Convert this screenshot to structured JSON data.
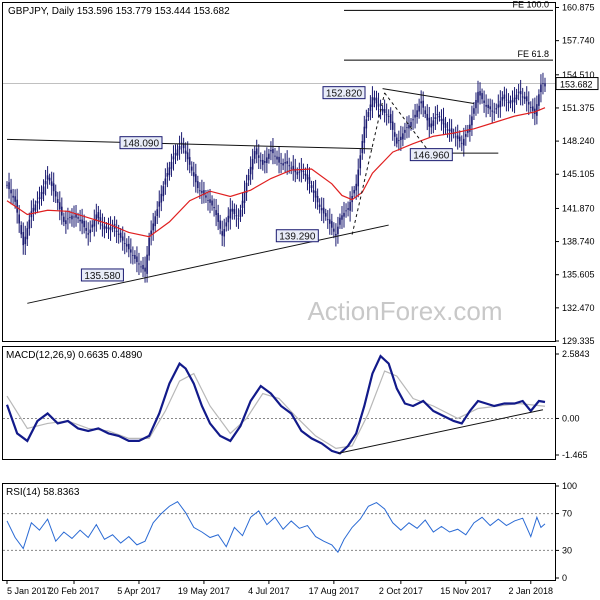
{
  "chart_data": [
    {
      "type": "candlestick",
      "panel": "price",
      "header": "GBPJPY, Daily  153.596 153.779 153.444 153.682",
      "symbol": "GBPJPY",
      "timeframe": "Daily",
      "ohlc": {
        "open": 153.596,
        "high": 153.779,
        "low": 153.444,
        "close": 153.682
      },
      "ylim": [
        129.335,
        161.3
      ],
      "y_ticks": [
        "160.875",
        "157.740",
        "154.510",
        "151.375",
        "148.240",
        "145.105",
        "141.870",
        "138.740",
        "135.605",
        "132.470",
        "129.335"
      ],
      "last_price_label": "153.682",
      "watermark": "ActionForex.com",
      "grid": false,
      "close_series": [
        {
          "i": 0,
          "v": 144.1
        },
        {
          "i": 4,
          "v": 142.5
        },
        {
          "i": 8,
          "v": 138.4
        },
        {
          "i": 12,
          "v": 141.6
        },
        {
          "i": 16,
          "v": 142.9
        },
        {
          "i": 20,
          "v": 145.0
        },
        {
          "i": 24,
          "v": 143.0
        },
        {
          "i": 28,
          "v": 140.6
        },
        {
          "i": 32,
          "v": 141.2
        },
        {
          "i": 36,
          "v": 140.8
        },
        {
          "i": 40,
          "v": 139.4
        },
        {
          "i": 44,
          "v": 141.3
        },
        {
          "i": 48,
          "v": 139.9
        },
        {
          "i": 52,
          "v": 140.2
        },
        {
          "i": 56,
          "v": 139.1
        },
        {
          "i": 60,
          "v": 138.0
        },
        {
          "i": 64,
          "v": 136.8
        },
        {
          "i": 68,
          "v": 135.9
        },
        {
          "i": 70,
          "v": 139.1
        },
        {
          "i": 74,
          "v": 141.8
        },
        {
          "i": 78,
          "v": 144.7
        },
        {
          "i": 82,
          "v": 146.8
        },
        {
          "i": 86,
          "v": 148.1
        },
        {
          "i": 90,
          "v": 146.0
        },
        {
          "i": 94,
          "v": 143.8
        },
        {
          "i": 98,
          "v": 142.9
        },
        {
          "i": 102,
          "v": 141.9
        },
        {
          "i": 106,
          "v": 139.3
        },
        {
          "i": 110,
          "v": 141.8
        },
        {
          "i": 114,
          "v": 140.9
        },
        {
          "i": 118,
          "v": 144.3
        },
        {
          "i": 122,
          "v": 147.3
        },
        {
          "i": 126,
          "v": 146.0
        },
        {
          "i": 130,
          "v": 147.4
        },
        {
          "i": 134,
          "v": 146.2
        },
        {
          "i": 138,
          "v": 146.1
        },
        {
          "i": 142,
          "v": 145.3
        },
        {
          "i": 146,
          "v": 145.4
        },
        {
          "i": 150,
          "v": 143.8
        },
        {
          "i": 154,
          "v": 142.0
        },
        {
          "i": 158,
          "v": 140.8
        },
        {
          "i": 162,
          "v": 139.3
        },
        {
          "i": 164,
          "v": 141.0
        },
        {
          "i": 168,
          "v": 141.9
        },
        {
          "i": 172,
          "v": 144.2
        },
        {
          "i": 176,
          "v": 149.6
        },
        {
          "i": 180,
          "v": 152.4
        },
        {
          "i": 184,
          "v": 151.2
        },
        {
          "i": 188,
          "v": 150.6
        },
        {
          "i": 192,
          "v": 148.0
        },
        {
          "i": 196,
          "v": 149.3
        },
        {
          "i": 200,
          "v": 150.3
        },
        {
          "i": 204,
          "v": 152.0
        },
        {
          "i": 208,
          "v": 149.6
        },
        {
          "i": 212,
          "v": 150.8
        },
        {
          "i": 216,
          "v": 149.5
        },
        {
          "i": 220,
          "v": 148.9
        },
        {
          "i": 224,
          "v": 148.0
        },
        {
          "i": 228,
          "v": 149.8
        },
        {
          "i": 232,
          "v": 152.9
        },
        {
          "i": 236,
          "v": 151.5
        },
        {
          "i": 240,
          "v": 151.0
        },
        {
          "i": 244,
          "v": 152.4
        },
        {
          "i": 248,
          "v": 151.8
        },
        {
          "i": 252,
          "v": 152.9
        },
        {
          "i": 256,
          "v": 152.0
        },
        {
          "i": 260,
          "v": 150.8
        },
        {
          "i": 263,
          "v": 153.6
        },
        {
          "i": 265,
          "v": 153.7
        }
      ],
      "ma_series": [
        {
          "i": 0,
          "v": 142.6
        },
        {
          "i": 10,
          "v": 141.3
        },
        {
          "i": 20,
          "v": 141.7
        },
        {
          "i": 30,
          "v": 141.6
        },
        {
          "i": 40,
          "v": 141.0
        },
        {
          "i": 50,
          "v": 140.4
        },
        {
          "i": 60,
          "v": 139.6
        },
        {
          "i": 70,
          "v": 139.2
        },
        {
          "i": 80,
          "v": 140.6
        },
        {
          "i": 90,
          "v": 142.6
        },
        {
          "i": 100,
          "v": 143.5
        },
        {
          "i": 110,
          "v": 143.0
        },
        {
          "i": 120,
          "v": 143.6
        },
        {
          "i": 130,
          "v": 144.7
        },
        {
          "i": 140,
          "v": 145.5
        },
        {
          "i": 150,
          "v": 145.6
        },
        {
          "i": 160,
          "v": 144.2
        },
        {
          "i": 165,
          "v": 143.1
        },
        {
          "i": 170,
          "v": 142.7
        },
        {
          "i": 175,
          "v": 143.4
        },
        {
          "i": 180,
          "v": 145.2
        },
        {
          "i": 190,
          "v": 147.2
        },
        {
          "i": 200,
          "v": 148.0
        },
        {
          "i": 210,
          "v": 148.7
        },
        {
          "i": 220,
          "v": 149.0
        },
        {
          "i": 230,
          "v": 149.4
        },
        {
          "i": 240,
          "v": 150.0
        },
        {
          "i": 250,
          "v": 150.6
        },
        {
          "i": 260,
          "v": 151.0
        },
        {
          "i": 265,
          "v": 151.4
        }
      ],
      "trendlines": [
        {
          "i1": 10,
          "v1": 132.9,
          "i2": 188,
          "v2": 140.3
        },
        {
          "i1": 0,
          "v1": 148.4,
          "i2": 180,
          "v2": 147.5
        },
        {
          "i1": 185,
          "v1": 153.2,
          "i2": 230,
          "v2": 151.8
        },
        {
          "i1": 207,
          "v1": 147.1,
          "i2": 242,
          "v2": 147.1
        },
        {
          "i1": 170,
          "v1": 139.4,
          "i2": 186,
          "v2": 152.8
        },
        {
          "i1": 186,
          "v1": 152.8,
          "i2": 209,
          "v2": 146.96
        }
      ],
      "fib_levels": [
        {
          "label": "FE 100.0",
          "price": 160.6,
          "i_start": 166
        },
        {
          "label": "FE 61.8",
          "price": 155.9,
          "i_start": 166
        }
      ],
      "level_labels": [
        {
          "text": "152.820",
          "i": 166,
          "price": 152.82
        },
        {
          "text": "148.090",
          "i": 66,
          "price": 148.09
        },
        {
          "text": "146.960",
          "i": 209,
          "price": 146.96
        },
        {
          "text": "139.290",
          "i": 143,
          "price": 139.29
        },
        {
          "text": "135.580",
          "i": 47,
          "price": 135.58
        }
      ]
    },
    {
      "type": "line",
      "panel": "macd",
      "label": "MACD(12,26,9) 0.6635 0.4890",
      "ylim": [
        -1.465,
        2.5843
      ],
      "y_ticks": [
        "2.5843",
        "0.00",
        "-1.465"
      ],
      "macd_series": [
        {
          "i": 0,
          "v": 0.55
        },
        {
          "i": 5,
          "v": -0.6
        },
        {
          "i": 10,
          "v": -0.9
        },
        {
          "i": 15,
          "v": -0.1
        },
        {
          "i": 20,
          "v": 0.2
        },
        {
          "i": 25,
          "v": -0.2
        },
        {
          "i": 30,
          "v": -0.1
        },
        {
          "i": 35,
          "v": -0.4
        },
        {
          "i": 40,
          "v": -0.5
        },
        {
          "i": 45,
          "v": -0.4
        },
        {
          "i": 50,
          "v": -0.6
        },
        {
          "i": 55,
          "v": -0.7
        },
        {
          "i": 60,
          "v": -0.9
        },
        {
          "i": 65,
          "v": -0.9
        },
        {
          "i": 70,
          "v": -0.7
        },
        {
          "i": 75,
          "v": 0.2
        },
        {
          "i": 80,
          "v": 1.4
        },
        {
          "i": 85,
          "v": 2.2
        },
        {
          "i": 88,
          "v": 2.0
        },
        {
          "i": 92,
          "v": 1.4
        },
        {
          "i": 96,
          "v": 0.5
        },
        {
          "i": 100,
          "v": -0.2
        },
        {
          "i": 105,
          "v": -0.7
        },
        {
          "i": 110,
          "v": -0.9
        },
        {
          "i": 115,
          "v": -0.3
        },
        {
          "i": 120,
          "v": 0.7
        },
        {
          "i": 125,
          "v": 1.3
        },
        {
          "i": 130,
          "v": 1.0
        },
        {
          "i": 135,
          "v": 0.5
        },
        {
          "i": 140,
          "v": 0.2
        },
        {
          "i": 145,
          "v": -0.5
        },
        {
          "i": 150,
          "v": -0.8
        },
        {
          "i": 155,
          "v": -1.0
        },
        {
          "i": 160,
          "v": -1.3
        },
        {
          "i": 164,
          "v": -1.4
        },
        {
          "i": 168,
          "v": -1.1
        },
        {
          "i": 172,
          "v": -0.6
        },
        {
          "i": 176,
          "v": 0.5
        },
        {
          "i": 180,
          "v": 1.8
        },
        {
          "i": 184,
          "v": 2.5
        },
        {
          "i": 188,
          "v": 2.2
        },
        {
          "i": 192,
          "v": 1.2
        },
        {
          "i": 196,
          "v": 0.6
        },
        {
          "i": 200,
          "v": 0.5
        },
        {
          "i": 205,
          "v": 0.7
        },
        {
          "i": 210,
          "v": 0.3
        },
        {
          "i": 215,
          "v": 0.1
        },
        {
          "i": 220,
          "v": -0.1
        },
        {
          "i": 224,
          "v": -0.2
        },
        {
          "i": 228,
          "v": 0.3
        },
        {
          "i": 232,
          "v": 0.7
        },
        {
          "i": 236,
          "v": 0.6
        },
        {
          "i": 240,
          "v": 0.5
        },
        {
          "i": 245,
          "v": 0.6
        },
        {
          "i": 250,
          "v": 0.6
        },
        {
          "i": 254,
          "v": 0.7
        },
        {
          "i": 258,
          "v": 0.3
        },
        {
          "i": 262,
          "v": 0.7
        },
        {
          "i": 265,
          "v": 0.66
        }
      ],
      "signal_series": [
        {
          "i": 0,
          "v": 0.9
        },
        {
          "i": 10,
          "v": -0.4
        },
        {
          "i": 20,
          "v": -0.2
        },
        {
          "i": 30,
          "v": -0.1
        },
        {
          "i": 40,
          "v": -0.4
        },
        {
          "i": 50,
          "v": -0.5
        },
        {
          "i": 60,
          "v": -0.8
        },
        {
          "i": 70,
          "v": -0.8
        },
        {
          "i": 78,
          "v": 0.3
        },
        {
          "i": 85,
          "v": 1.5
        },
        {
          "i": 92,
          "v": 1.8
        },
        {
          "i": 100,
          "v": 0.5
        },
        {
          "i": 110,
          "v": -0.6
        },
        {
          "i": 118,
          "v": 0.0
        },
        {
          "i": 126,
          "v": 1.0
        },
        {
          "i": 134,
          "v": 0.8
        },
        {
          "i": 142,
          "v": 0.1
        },
        {
          "i": 152,
          "v": -0.7
        },
        {
          "i": 162,
          "v": -1.2
        },
        {
          "i": 170,
          "v": -1.1
        },
        {
          "i": 178,
          "v": 0.2
        },
        {
          "i": 186,
          "v": 1.9
        },
        {
          "i": 192,
          "v": 1.7
        },
        {
          "i": 200,
          "v": 0.8
        },
        {
          "i": 210,
          "v": 0.5
        },
        {
          "i": 222,
          "v": 0.0
        },
        {
          "i": 232,
          "v": 0.4
        },
        {
          "i": 242,
          "v": 0.5
        },
        {
          "i": 252,
          "v": 0.6
        },
        {
          "i": 265,
          "v": 0.49
        }
      ],
      "trendline": {
        "i1": 163,
        "v1": -1.4,
        "i2": 264,
        "v2": 0.35
      }
    },
    {
      "type": "line",
      "panel": "rsi",
      "label": "RSI(14) 58.8363",
      "ylim": [
        0,
        100
      ],
      "y_ticks": [
        "100",
        "70",
        "30",
        "0"
      ],
      "reference_levels": [
        70,
        30
      ],
      "rsi_series": [
        {
          "i": 0,
          "v": 62
        },
        {
          "i": 4,
          "v": 44
        },
        {
          "i": 8,
          "v": 32
        },
        {
          "i": 12,
          "v": 60
        },
        {
          "i": 16,
          "v": 52
        },
        {
          "i": 20,
          "v": 64
        },
        {
          "i": 24,
          "v": 40
        },
        {
          "i": 28,
          "v": 50
        },
        {
          "i": 32,
          "v": 43
        },
        {
          "i": 36,
          "v": 52
        },
        {
          "i": 40,
          "v": 44
        },
        {
          "i": 44,
          "v": 58
        },
        {
          "i": 48,
          "v": 42
        },
        {
          "i": 52,
          "v": 47
        },
        {
          "i": 56,
          "v": 38
        },
        {
          "i": 60,
          "v": 45
        },
        {
          "i": 64,
          "v": 36
        },
        {
          "i": 68,
          "v": 40
        },
        {
          "i": 72,
          "v": 60
        },
        {
          "i": 76,
          "v": 70
        },
        {
          "i": 80,
          "v": 78
        },
        {
          "i": 84,
          "v": 83
        },
        {
          "i": 88,
          "v": 71
        },
        {
          "i": 92,
          "v": 55
        },
        {
          "i": 96,
          "v": 50
        },
        {
          "i": 100,
          "v": 44
        },
        {
          "i": 104,
          "v": 47
        },
        {
          "i": 108,
          "v": 34
        },
        {
          "i": 112,
          "v": 55
        },
        {
          "i": 116,
          "v": 46
        },
        {
          "i": 120,
          "v": 66
        },
        {
          "i": 124,
          "v": 73
        },
        {
          "i": 128,
          "v": 58
        },
        {
          "i": 132,
          "v": 66
        },
        {
          "i": 136,
          "v": 53
        },
        {
          "i": 140,
          "v": 62
        },
        {
          "i": 144,
          "v": 54
        },
        {
          "i": 148,
          "v": 57
        },
        {
          "i": 152,
          "v": 45
        },
        {
          "i": 156,
          "v": 40
        },
        {
          "i": 160,
          "v": 36
        },
        {
          "i": 163,
          "v": 28
        },
        {
          "i": 166,
          "v": 42
        },
        {
          "i": 170,
          "v": 55
        },
        {
          "i": 174,
          "v": 64
        },
        {
          "i": 178,
          "v": 78
        },
        {
          "i": 182,
          "v": 82
        },
        {
          "i": 186,
          "v": 75
        },
        {
          "i": 190,
          "v": 60
        },
        {
          "i": 194,
          "v": 52
        },
        {
          "i": 198,
          "v": 60
        },
        {
          "i": 202,
          "v": 54
        },
        {
          "i": 206,
          "v": 63
        },
        {
          "i": 210,
          "v": 50
        },
        {
          "i": 214,
          "v": 56
        },
        {
          "i": 218,
          "v": 50
        },
        {
          "i": 222,
          "v": 53
        },
        {
          "i": 226,
          "v": 47
        },
        {
          "i": 230,
          "v": 60
        },
        {
          "i": 234,
          "v": 66
        },
        {
          "i": 238,
          "v": 57
        },
        {
          "i": 242,
          "v": 64
        },
        {
          "i": 246,
          "v": 57
        },
        {
          "i": 250,
          "v": 62
        },
        {
          "i": 254,
          "v": 65
        },
        {
          "i": 258,
          "v": 45
        },
        {
          "i": 261,
          "v": 66
        },
        {
          "i": 263,
          "v": 55
        },
        {
          "i": 265,
          "v": 58.8
        }
      ]
    }
  ],
  "x_axis": {
    "labels": [
      {
        "text": "5 Jan 2017",
        "i": 0
      },
      {
        "text": "20 Feb 2017",
        "i": 33
      },
      {
        "text": "5 Apr 2017",
        "i": 65
      },
      {
        "text": "19 May 2017",
        "i": 97
      },
      {
        "text": "4 Jul 2017",
        "i": 129
      },
      {
        "text": "17 Aug 2017",
        "i": 161
      },
      {
        "text": "2 Oct 2017",
        "i": 194
      },
      {
        "text": "15 Nov 2017",
        "i": 226
      },
      {
        "text": "2 Jan 2018",
        "i": 258
      }
    ]
  },
  "colors": {
    "candle_body": "#1a1a70",
    "ma": "#e02020",
    "macd": "#121a8a",
    "signal": "#b8b8b8",
    "rsi": "#2a6ad4",
    "trendline": "#111111",
    "label_box_fill": "#e8ecf8",
    "label_box_border": "#1a1a70",
    "reference_dotted": "#888888",
    "watermark": "#c8c8c8"
  }
}
